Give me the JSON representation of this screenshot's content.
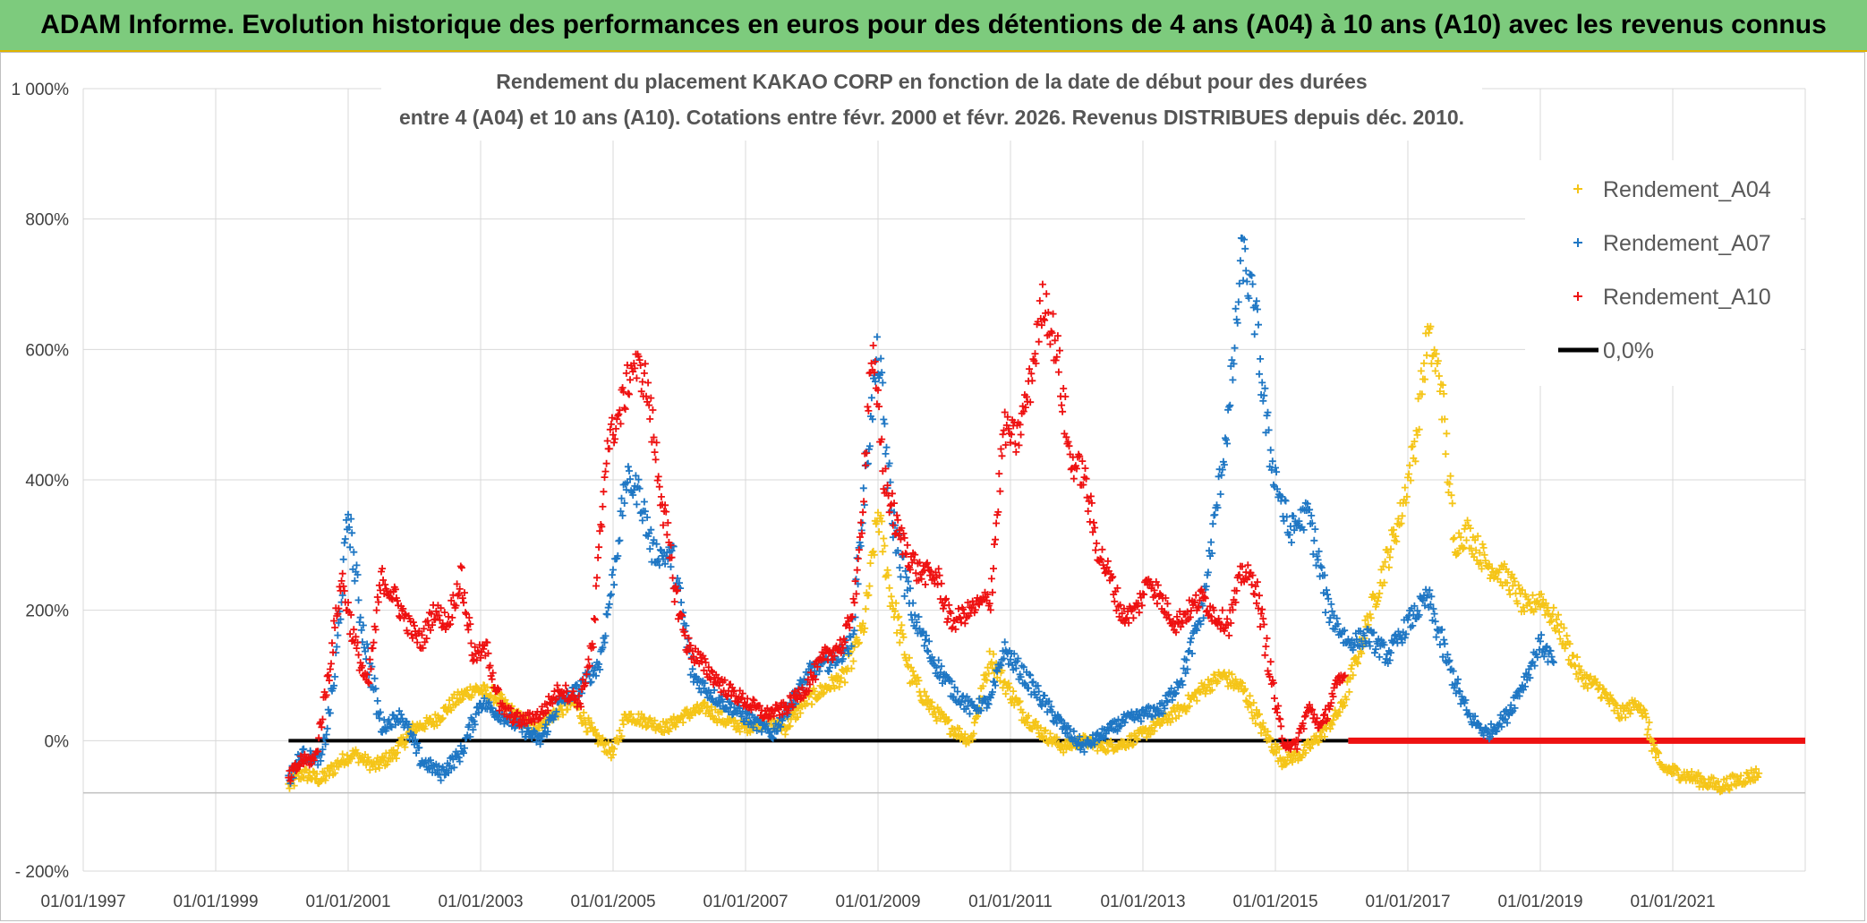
{
  "banner": {
    "title": "ADAM Informe. Evolution historique des performances en euros pour des détentions de 4 ans (A04) à 10 ans (A10) avec les revenus connus distribués"
  },
  "chart_data": {
    "type": "scatter",
    "title_line1": "Rendement du placement KAKAO CORP en fonction de la date de début pour des durées",
    "title_line2": "entre 4 (A04) et 10 ans (A10). Cotations entre févr. 2000 et févr. 2026. Revenus DISTRIBUES depuis déc. 2010.",
    "xlabel": "",
    "ylabel": "",
    "xlim": [
      1997.0,
      2023.0
    ],
    "ylim": [
      -200,
      1000
    ],
    "y_ticks": [
      {
        "value": -200,
        "label": "- 200%"
      },
      {
        "value": 0,
        "label": "0%"
      },
      {
        "value": 200,
        "label": "200%"
      },
      {
        "value": 400,
        "label": "400%"
      },
      {
        "value": 600,
        "label": "600%"
      },
      {
        "value": 800,
        "label": "800%"
      },
      {
        "value": 1000,
        "label": "1 000%"
      }
    ],
    "x_ticks": [
      {
        "value": 1997,
        "label": "01/01/1997"
      },
      {
        "value": 1999,
        "label": "01/01/1999"
      },
      {
        "value": 2001,
        "label": "01/01/2001"
      },
      {
        "value": 2003,
        "label": "01/01/2003"
      },
      {
        "value": 2005,
        "label": "01/01/2005"
      },
      {
        "value": 2007,
        "label": "01/01/2007"
      },
      {
        "value": 2009,
        "label": "01/01/2009"
      },
      {
        "value": 2011,
        "label": "01/01/2011"
      },
      {
        "value": 2013,
        "label": "01/01/2013"
      },
      {
        "value": 2015,
        "label": "01/01/2015"
      },
      {
        "value": 2017,
        "label": "01/01/2017"
      },
      {
        "value": 2019,
        "label": "01/01/2019"
      },
      {
        "value": 2021,
        "label": "01/01/2021"
      }
    ],
    "zero_line": {
      "name": "0,0%",
      "from": 2000.1,
      "to": 2016.1,
      "value": 0,
      "color": "#000000"
    },
    "legend_position": "top-right",
    "series": [
      {
        "name": "Rendement_A04",
        "color": "#f5c518",
        "x": [
          2000.1,
          2000.3,
          2000.6,
          2000.9,
          2001.1,
          2001.4,
          2001.7,
          2002.0,
          2002.3,
          2002.6,
          2002.9,
          2003.2,
          2003.5,
          2003.8,
          2004.1,
          2004.4,
          2004.7,
          2005.0,
          2005.2,
          2005.5,
          2005.8,
          2006.1,
          2006.4,
          2006.7,
          2007.0,
          2007.3,
          2007.6,
          2007.9,
          2008.2,
          2008.5,
          2008.8,
          2009.0,
          2009.2,
          2009.5,
          2009.8,
          2010.1,
          2010.4,
          2010.7,
          2010.9,
          2011.2,
          2011.5,
          2011.8,
          2012.1,
          2012.4,
          2012.7,
          2013.0,
          2013.3,
          2013.6,
          2013.9,
          2014.2,
          2014.5,
          2014.8,
          2015.1,
          2015.4,
          2015.7,
          2016.0,
          2016.3,
          2016.6,
          2016.9,
          2017.1,
          2017.3,
          2017.5,
          2017.7,
          2017.9,
          2018.2,
          2018.5,
          2018.8,
          2019.0,
          2019.3,
          2019.6,
          2019.9,
          2020.2,
          2020.5,
          2020.8,
          2021.1,
          2021.4,
          2021.7,
          2022.0,
          2022.3
        ],
        "y": [
          -70,
          -50,
          -60,
          -30,
          -20,
          -40,
          -20,
          20,
          30,
          60,
          80,
          70,
          40,
          20,
          40,
          60,
          10,
          -20,
          40,
          30,
          20,
          40,
          50,
          30,
          20,
          30,
          20,
          60,
          80,
          100,
          180,
          350,
          220,
          100,
          50,
          20,
          0,
          130,
          90,
          40,
          10,
          -10,
          0,
          -10,
          -5,
          10,
          30,
          50,
          80,
          100,
          80,
          20,
          -30,
          -20,
          10,
          50,
          150,
          250,
          350,
          450,
          620,
          550,
          300,
          320,
          270,
          250,
          200,
          220,
          170,
          100,
          80,
          40,
          60,
          -40,
          -50,
          -60,
          -70,
          -60,
          -50
        ]
      },
      {
        "name": "Rendement_A07",
        "color": "#1f77c4",
        "x": [
          2000.1,
          2000.3,
          2000.6,
          2000.8,
          2001.0,
          2001.2,
          2001.5,
          2001.8,
          2002.1,
          2002.4,
          2002.7,
          2003.0,
          2003.3,
          2003.6,
          2003.9,
          2004.2,
          2004.5,
          2004.8,
          2005.0,
          2005.2,
          2005.4,
          2005.6,
          2005.9,
          2006.2,
          2006.5,
          2006.8,
          2007.1,
          2007.4,
          2007.7,
          2008.0,
          2008.3,
          2008.6,
          2008.85,
          2009.0,
          2009.2,
          2009.5,
          2009.8,
          2010.1,
          2010.4,
          2010.7,
          2010.9,
          2011.2,
          2011.5,
          2011.8,
          2012.1,
          2012.4,
          2012.7,
          2013.0,
          2013.3,
          2013.6,
          2013.9,
          2014.1,
          2014.3,
          2014.5,
          2014.7,
          2014.9,
          2015.2,
          2015.5,
          2015.8,
          2016.1,
          2016.4,
          2016.7,
          2017.0,
          2017.3,
          2017.6,
          2017.9,
          2018.2,
          2018.5,
          2018.8,
          2019.0,
          2019.2
        ],
        "y": [
          -60,
          -20,
          -30,
          100,
          350,
          180,
          20,
          40,
          -30,
          -50,
          -20,
          60,
          40,
          20,
          0,
          60,
          80,
          120,
          250,
          400,
          380,
          290,
          280,
          100,
          70,
          50,
          30,
          10,
          60,
          110,
          120,
          150,
          450,
          600,
          350,
          200,
          130,
          80,
          50,
          60,
          140,
          100,
          60,
          20,
          -10,
          10,
          30,
          40,
          50,
          100,
          200,
          350,
          500,
          750,
          650,
          450,
          320,
          350,
          200,
          150,
          160,
          130,
          180,
          220,
          120,
          40,
          10,
          40,
          100,
          150,
          120
        ]
      },
      {
        "name": "Rendement_A10",
        "color": "#ee1111",
        "x": [
          2000.1,
          2000.3,
          2000.5,
          2000.7,
          2000.9,
          2001.1,
          2001.3,
          2001.5,
          2001.7,
          2001.9,
          2002.1,
          2002.3,
          2002.5,
          2002.7,
          2002.9,
          2003.1,
          2003.3,
          2003.6,
          2003.9,
          2004.2,
          2004.5,
          2004.7,
          2004.9,
          2005.1,
          2005.3,
          2005.5,
          2005.7,
          2005.9,
          2006.1,
          2006.4,
          2006.7,
          2007.0,
          2007.3,
          2007.6,
          2007.9,
          2008.2,
          2008.5,
          2008.7,
          2008.9,
          2009.1,
          2009.3,
          2009.6,
          2009.9,
          2010.1,
          2010.4,
          2010.7,
          2010.9,
          2011.1,
          2011.3,
          2011.5,
          2011.7,
          2011.9,
          2012.1,
          2012.3,
          2012.5,
          2012.7,
          2012.9,
          2013.1,
          2013.3,
          2013.5,
          2013.7,
          2013.9,
          2014.1,
          2014.3,
          2014.5,
          2014.7,
          2014.9,
          2015.1,
          2015.3,
          2015.5,
          2015.7,
          2015.9,
          2016.05
        ],
        "y": [
          -60,
          -30,
          -30,
          100,
          250,
          150,
          80,
          250,
          220,
          180,
          150,
          200,
          180,
          250,
          130,
          140,
          50,
          30,
          40,
          80,
          60,
          150,
          450,
          500,
          580,
          550,
          400,
          250,
          150,
          110,
          80,
          60,
          40,
          50,
          80,
          130,
          150,
          250,
          600,
          400,
          320,
          260,
          250,
          180,
          200,
          220,
          480,
          460,
          550,
          680,
          600,
          430,
          410,
          300,
          250,
          190,
          200,
          250,
          210,
          180,
          200,
          220,
          190,
          180,
          260,
          240,
          120,
          0,
          -10,
          50,
          20,
          80,
          100
        ]
      }
    ],
    "a10_zero_tail": {
      "from": 2016.1,
      "to": 2023.0,
      "value": 0
    }
  }
}
